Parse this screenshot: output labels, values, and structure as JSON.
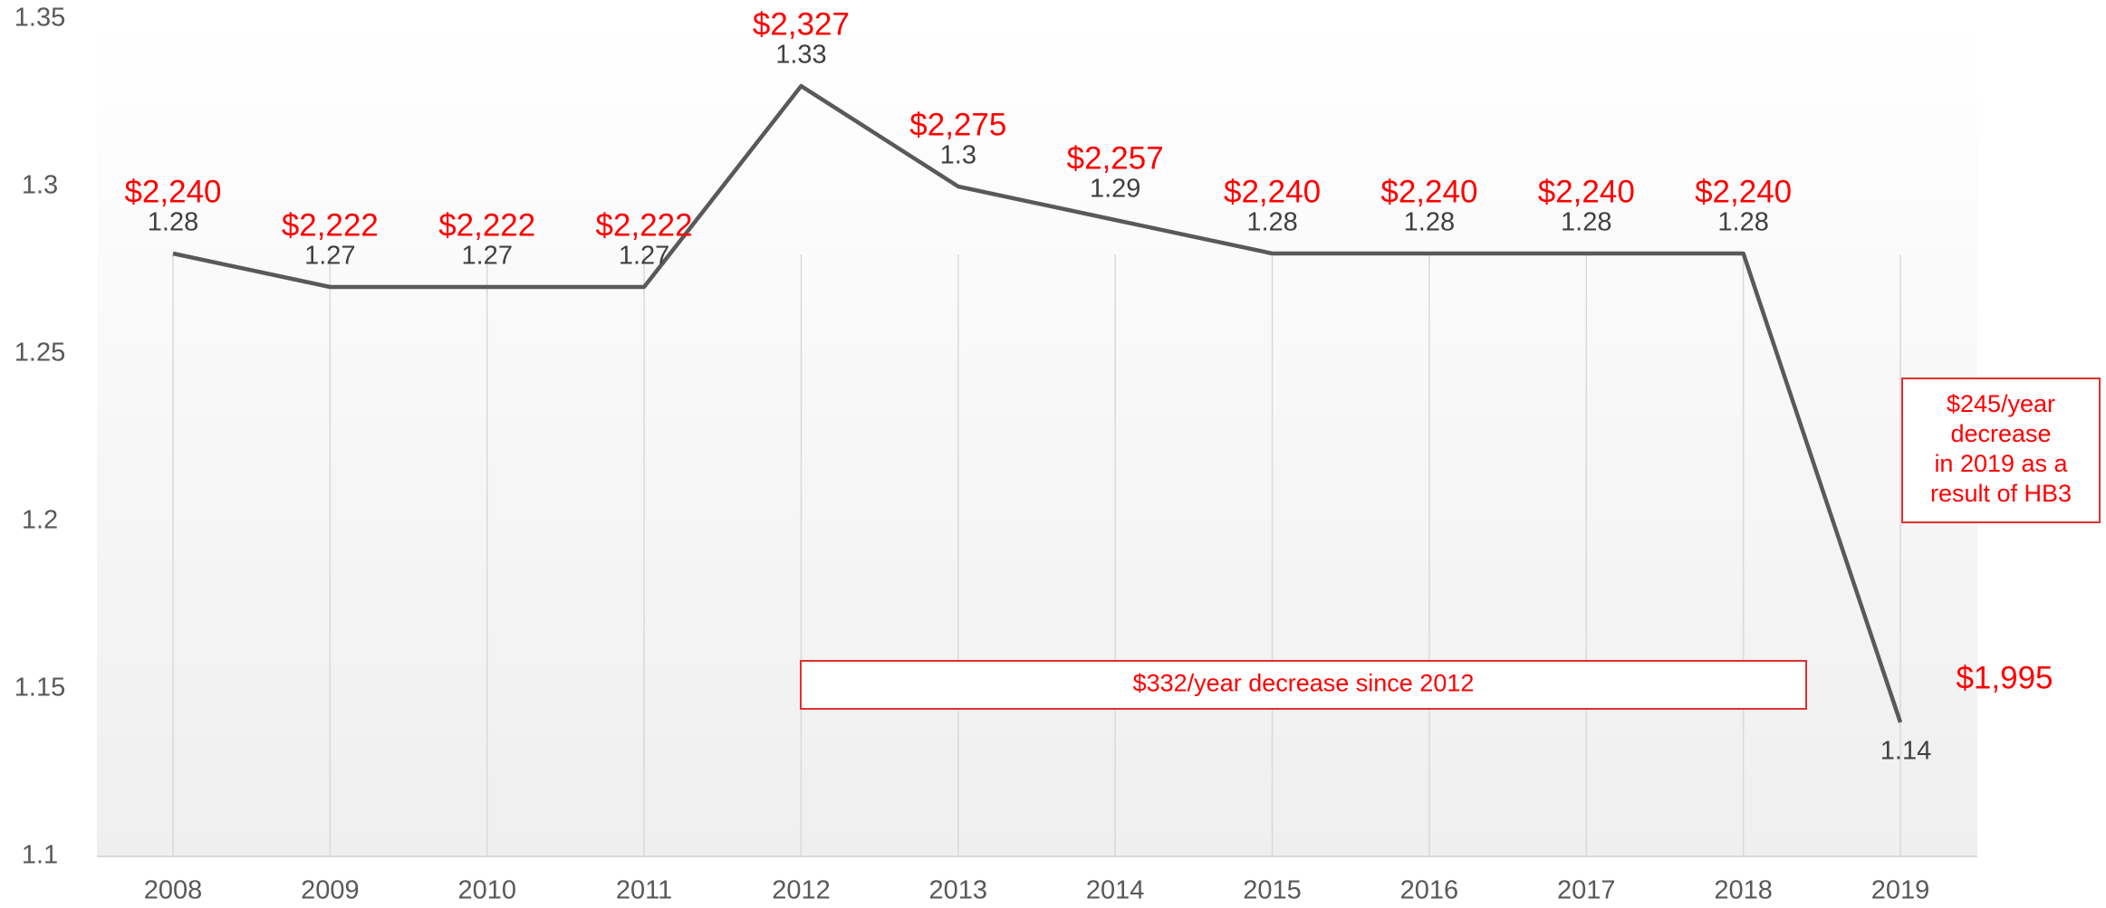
{
  "chart_data": {
    "type": "line",
    "categories": [
      "2008",
      "2009",
      "2010",
      "2011",
      "2012",
      "2013",
      "2014",
      "2015",
      "2016",
      "2017",
      "2018",
      "2019"
    ],
    "series": [
      {
        "name": "",
        "color": "#595959",
        "values": [
          1.28,
          1.27,
          1.27,
          1.27,
          1.33,
          1.3,
          1.29,
          1.28,
          1.28,
          1.28,
          1.28,
          1.14
        ]
      }
    ],
    "point_annotations": [
      "$2,240",
      "$2,222",
      "$2,222",
      "$2,222",
      "$2,327",
      "$2,275",
      "$2,257",
      "$2,240",
      "$2,240",
      "$2,240",
      "$2,240",
      "$1,995"
    ],
    "boxes": [
      {
        "lines": [
          "$332/year decrease since 2012"
        ]
      },
      {
        "lines": [
          "$245/year",
          "decrease",
          "in 2019 as a",
          "result of HB3"
        ]
      }
    ],
    "ylim": [
      1.1,
      1.35
    ],
    "yticks": [
      1.1,
      1.15,
      1.2,
      1.25,
      1.3,
      1.35
    ],
    "grid": true
  }
}
